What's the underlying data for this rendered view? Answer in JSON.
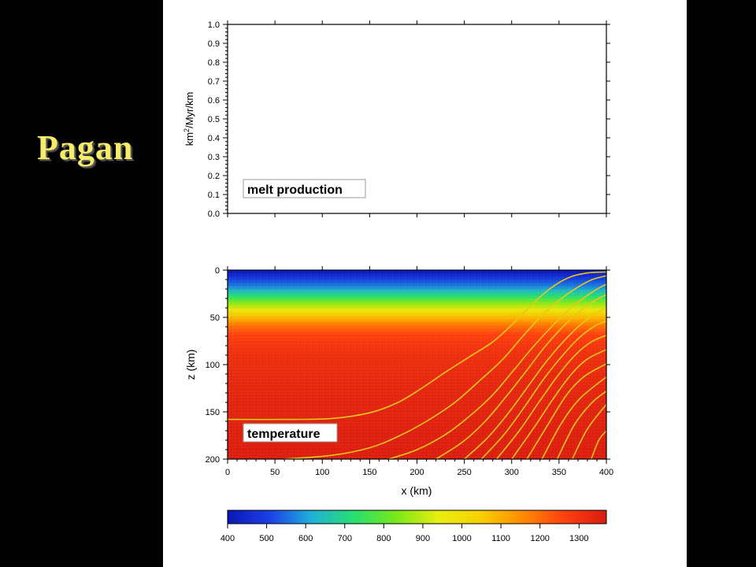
{
  "slide": {
    "title": "Pagan"
  },
  "chart_data": [
    {
      "type": "line",
      "ylabel_base": "km",
      "ylabel_sup": "2",
      "ylabel_rest": "/Myr/km",
      "legend_label": "melt production",
      "ylim": [
        0,
        1
      ],
      "yticks": [
        "0.0",
        "0.1",
        "0.2",
        "0.3",
        "0.4",
        "0.5",
        "0.6",
        "0.7",
        "0.8",
        "0.9",
        "1.0"
      ],
      "xlim": [
        0,
        400
      ],
      "series": []
    },
    {
      "type": "heatmap",
      "xlabel": "x (km)",
      "ylabel": "z (km)",
      "legend_label": "temperature",
      "xlim": [
        0,
        400
      ],
      "ylim": [
        200,
        0
      ],
      "xticks": [
        "0",
        "50",
        "100",
        "150",
        "200",
        "250",
        "300",
        "350",
        "400"
      ],
      "yticks": [
        "0",
        "50",
        "100",
        "150",
        "200"
      ],
      "temperature_profile": [
        {
          "z": 0,
          "t": 400
        },
        {
          "z": 8,
          "t": 480
        },
        {
          "z": 16,
          "t": 560
        },
        {
          "z": 22,
          "t": 640
        },
        {
          "z": 28,
          "t": 730
        },
        {
          "z": 35,
          "t": 850
        },
        {
          "z": 42,
          "t": 960
        },
        {
          "z": 50,
          "t": 1080
        },
        {
          "z": 58,
          "t": 1180
        },
        {
          "z": 68,
          "t": 1260
        },
        {
          "z": 85,
          "t": 1300
        },
        {
          "z": 120,
          "t": 1330
        },
        {
          "z": 200,
          "t": 1360
        }
      ],
      "streamlines": [
        [
          [
            0,
            158
          ],
          [
            60,
            158
          ],
          [
            110,
            157
          ],
          [
            150,
            151
          ],
          [
            180,
            140
          ],
          [
            205,
            125
          ],
          [
            230,
            108
          ],
          [
            255,
            92
          ],
          [
            280,
            76
          ],
          [
            300,
            58
          ],
          [
            320,
            38
          ],
          [
            340,
            20
          ],
          [
            360,
            8
          ],
          [
            380,
            3
          ],
          [
            400,
            2
          ]
        ],
        [
          [
            60,
            200
          ],
          [
            110,
            196
          ],
          [
            150,
            188
          ],
          [
            180,
            176
          ],
          [
            210,
            160
          ],
          [
            240,
            140
          ],
          [
            265,
            118
          ],
          [
            290,
            95
          ],
          [
            310,
            72
          ],
          [
            330,
            50
          ],
          [
            350,
            32
          ],
          [
            370,
            18
          ],
          [
            385,
            10
          ],
          [
            400,
            6
          ]
        ],
        [
          [
            170,
            200
          ],
          [
            200,
            190
          ],
          [
            230,
            174
          ],
          [
            255,
            155
          ],
          [
            280,
            132
          ],
          [
            302,
            106
          ],
          [
            322,
            82
          ],
          [
            342,
            60
          ],
          [
            360,
            42
          ],
          [
            378,
            28
          ],
          [
            392,
            19
          ],
          [
            400,
            15
          ]
        ],
        [
          [
            220,
            200
          ],
          [
            248,
            182
          ],
          [
            272,
            160
          ],
          [
            294,
            134
          ],
          [
            316,
            106
          ],
          [
            336,
            80
          ],
          [
            356,
            58
          ],
          [
            374,
            42
          ],
          [
            390,
            31
          ],
          [
            400,
            26
          ]
        ],
        [
          [
            250,
            200
          ],
          [
            274,
            178
          ],
          [
            296,
            152
          ],
          [
            318,
            122
          ],
          [
            338,
            95
          ],
          [
            358,
            72
          ],
          [
            376,
            55
          ],
          [
            392,
            44
          ],
          [
            400,
            40
          ]
        ],
        [
          [
            268,
            200
          ],
          [
            292,
            174
          ],
          [
            314,
            144
          ],
          [
            334,
            115
          ],
          [
            354,
            90
          ],
          [
            372,
            71
          ],
          [
            388,
            59
          ],
          [
            400,
            54
          ]
        ],
        [
          [
            284,
            200
          ],
          [
            308,
            170
          ],
          [
            330,
            138
          ],
          [
            350,
            110
          ],
          [
            368,
            89
          ],
          [
            384,
            76
          ],
          [
            400,
            69
          ]
        ],
        [
          [
            300,
            200
          ],
          [
            324,
            166
          ],
          [
            346,
            133
          ],
          [
            364,
            109
          ],
          [
            380,
            94
          ],
          [
            400,
            84
          ]
        ],
        [
          [
            316,
            200
          ],
          [
            338,
            164
          ],
          [
            358,
            132
          ],
          [
            376,
            113
          ],
          [
            400,
            99
          ]
        ],
        [
          [
            332,
            200
          ],
          [
            352,
            163
          ],
          [
            372,
            136
          ],
          [
            400,
            113
          ]
        ],
        [
          [
            348,
            200
          ],
          [
            366,
            164
          ],
          [
            384,
            141
          ],
          [
            400,
            128
          ]
        ],
        [
          [
            364,
            200
          ],
          [
            380,
            168
          ],
          [
            400,
            142
          ]
        ],
        [
          [
            384,
            200
          ],
          [
            392,
            180
          ],
          [
            400,
            170
          ]
        ]
      ]
    },
    {
      "type": "colorbar",
      "range": [
        400,
        1370
      ],
      "ticks": [
        "400",
        "500",
        "600",
        "700",
        "800",
        "900",
        "1000",
        "1100",
        "1200",
        "1300"
      ],
      "colors": [
        "#0a16b4",
        "#1a40e8",
        "#20b0d8",
        "#25e070",
        "#78e818",
        "#e8ee10",
        "#f8d000",
        "#ff8c00",
        "#ff4010",
        "#d81c10"
      ]
    }
  ]
}
